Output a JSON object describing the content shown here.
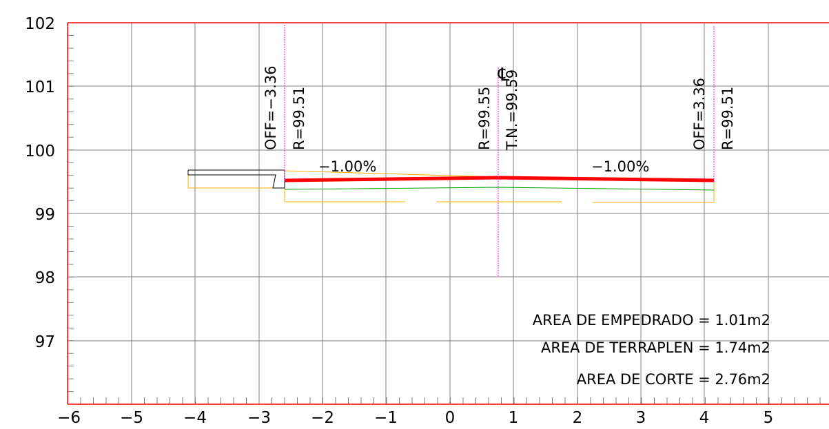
{
  "y_axis": {
    "labels": [
      "102",
      "101",
      "100",
      "99",
      "98",
      "97"
    ],
    "values": [
      102,
      101,
      100,
      99,
      98,
      97
    ]
  },
  "x_axis": {
    "labels": [
      "−6",
      "−5",
      "−4",
      "−3",
      "−2",
      "−1",
      "0",
      "1",
      "2",
      "3",
      "4",
      "5"
    ],
    "values": [
      -6,
      -5,
      -4,
      -3,
      -2,
      -1,
      0,
      1,
      2,
      3,
      4,
      5
    ]
  },
  "annotations": {
    "left_offset": "OFF=−3.36",
    "left_rasante": "R=99.51",
    "center_rasante": "R=99.55",
    "center_terrain": "T.N.=99.59",
    "center_symbol": "℄",
    "right_offset": "OFF=3.36",
    "right_rasante": "R=99.51",
    "slope_left": "−1.00%",
    "slope_right": "−1.00%"
  },
  "areas": {
    "empedrado": "AREA DE EMPEDRADO = 1.01m2",
    "terraplen": "AREA DE TERRAPLEN = 1.74m2",
    "corte": "AREA DE CORTE = 2.76m2"
  },
  "colors": {
    "grid": "#808080",
    "frame": "#ff0000",
    "rasante": "#ff0000",
    "subgrade": "#00a000",
    "terrain": "#ffb000",
    "axis_marker": "#ff00ff"
  }
}
